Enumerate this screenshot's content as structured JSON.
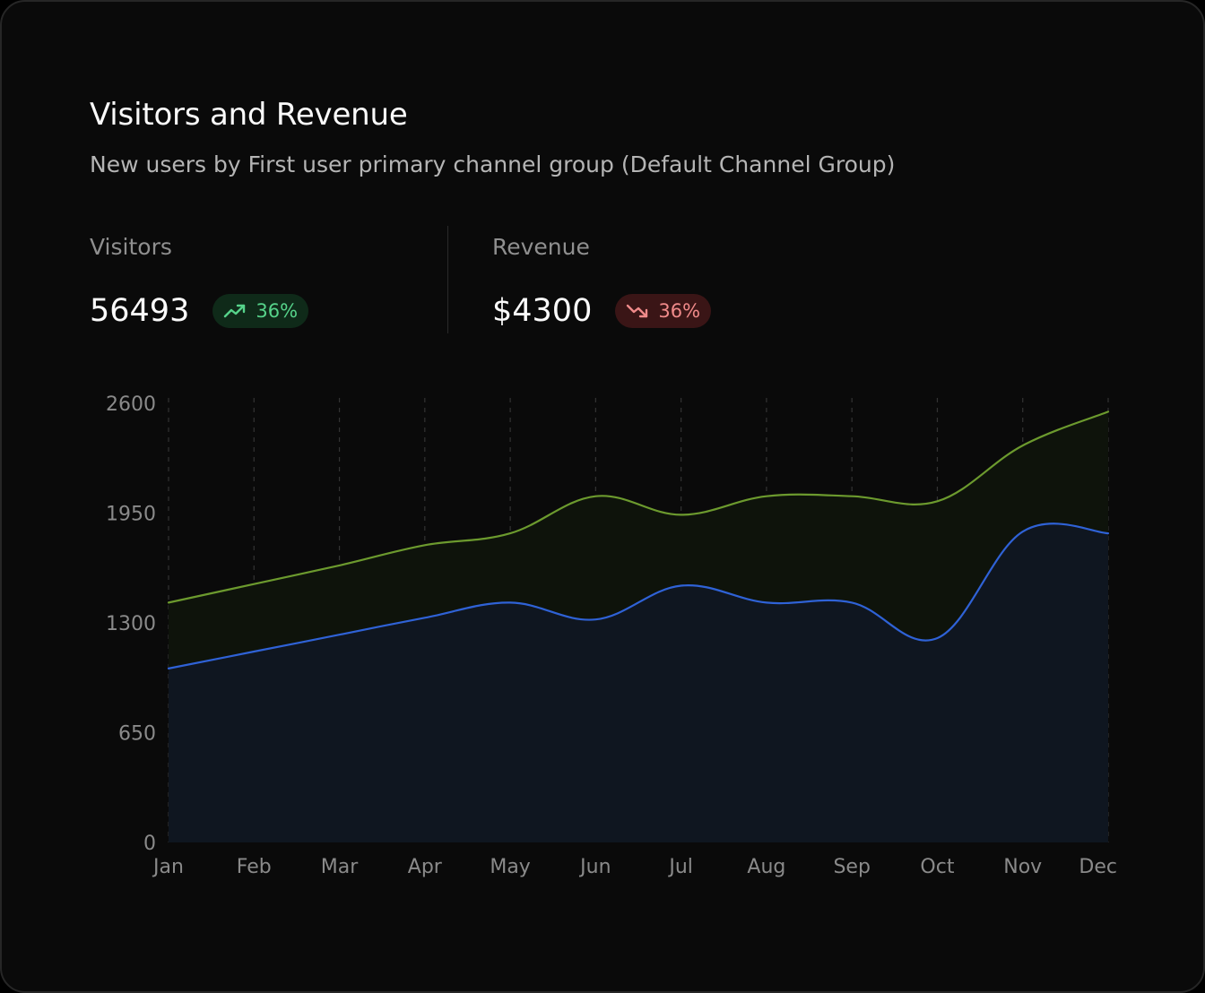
{
  "card": {
    "title": "Visitors and Revenue",
    "subtitle": "New users by First user primary channel group (Default Channel Group)"
  },
  "stats": {
    "visitors": {
      "label": "Visitors",
      "value": "56493",
      "change": "36%",
      "trend": "up"
    },
    "revenue": {
      "label": "Revenue",
      "value": "$4300",
      "change": "36%",
      "trend": "down"
    }
  },
  "colors": {
    "visitors_line": "#6c9a2e",
    "visitors_fill": "#0e130b",
    "revenue_line": "#2f62d6",
    "revenue_fill": "#0f1620",
    "grid": "#333333",
    "badge_up": "#56d38a",
    "badge_down": "#f08a8a"
  },
  "chart_data": {
    "type": "area",
    "title": "",
    "xlabel": "",
    "ylabel": "",
    "categories": [
      "Jan",
      "Feb",
      "Mar",
      "Apr",
      "May",
      "Jun",
      "Jul",
      "Aug",
      "Sep",
      "Oct",
      "Nov",
      "Dec"
    ],
    "yticks": [
      0,
      650,
      1300,
      1950,
      2600
    ],
    "ylim": [
      0,
      2600
    ],
    "grid": "vertical dashed",
    "series": [
      {
        "name": "Visitors",
        "values": [
          1420,
          1530,
          1640,
          1760,
          1830,
          2050,
          1940,
          2050,
          2050,
          2020,
          2350,
          2550
        ]
      },
      {
        "name": "Revenue",
        "values": [
          1030,
          1130,
          1230,
          1330,
          1420,
          1320,
          1520,
          1420,
          1420,
          1210,
          1840,
          1830
        ]
      }
    ]
  }
}
